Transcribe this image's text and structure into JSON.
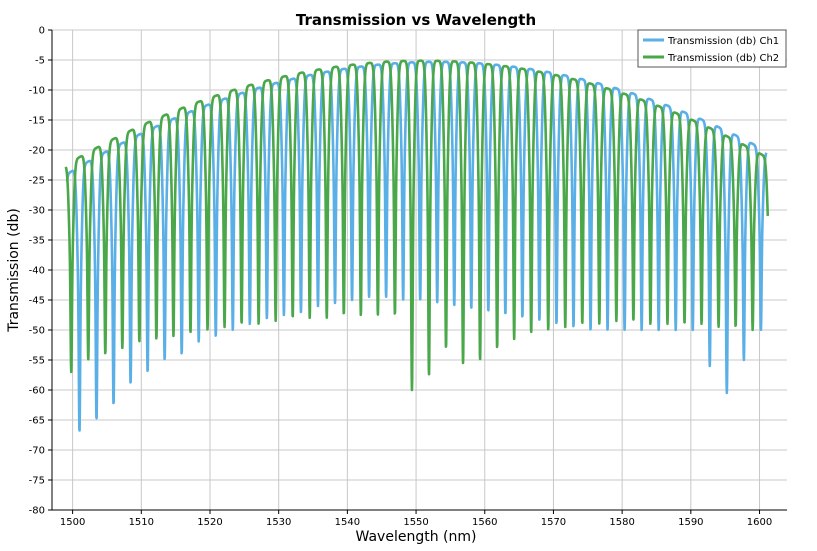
{
  "chart_data": {
    "type": "line",
    "title": "Transmission vs Wavelength",
    "xlabel": "Wavelength (nm)",
    "ylabel": "Transmission (db)",
    "xlim": [
      1497,
      1604
    ],
    "ylim": [
      -80,
      0
    ],
    "x_ticks": [
      1500,
      1510,
      1520,
      1530,
      1540,
      1550,
      1560,
      1570,
      1580,
      1590,
      1600
    ],
    "y_ticks": [
      0,
      -5,
      -10,
      -15,
      -20,
      -25,
      -30,
      -35,
      -40,
      -45,
      -50,
      -55,
      -60,
      -65,
      -70,
      -75,
      -80
    ],
    "grid": true,
    "legend_position": "top-right",
    "series": [
      {
        "name": "Transmission (db) Ch1",
        "color": "#5aafe6",
        "x_start": 1499.2,
        "x_end": 1601.0,
        "fsr": 2.48,
        "first_dip": 1501.0,
        "envelope_peak_x": 1553,
        "envelope_peak_y": -5.3,
        "envelope_edge_y": -24,
        "dip_depths": [
          -67,
          -65,
          -62.5,
          -59,
          -57,
          -55,
          -54,
          -52,
          -51,
          -50,
          -49,
          -48,
          -47.5,
          -47,
          -46,
          -45.5,
          -45,
          -44.5,
          -44.5,
          -45,
          -45,
          -45.5,
          -46,
          -46.5,
          -47,
          -47.5,
          -48,
          -48.5,
          -49,
          -49.5,
          -50,
          -50,
          -50,
          -50,
          -50,
          -50,
          -50,
          -56,
          -60.5,
          -55,
          -50,
          -50
        ]
      },
      {
        "name": "Transmission (db) Ch2",
        "color": "#4aa84a",
        "x_start": 1499.0,
        "x_end": 1601.2,
        "fsr": 2.48,
        "first_dip": 1499.8,
        "envelope_peak_x": 1551,
        "envelope_peak_y": -5.1,
        "envelope_edge_y": -22.5,
        "dip_depths": [
          -57,
          -55,
          -54,
          -53,
          -52,
          -51.5,
          -51,
          -50.5,
          -50,
          -49.5,
          -49,
          -49,
          -48.5,
          -48,
          -48,
          -48,
          -47.5,
          -47.5,
          -47.5,
          -47.5,
          -60,
          -57.5,
          -53,
          -55.5,
          -55,
          -53,
          -51.5,
          -50.5,
          -50,
          -49.5,
          -49,
          -49,
          -48.5,
          -48.5,
          -49,
          -49,
          -49,
          -49,
          -49.5,
          -49.5,
          -50,
          -50
        ]
      }
    ]
  }
}
